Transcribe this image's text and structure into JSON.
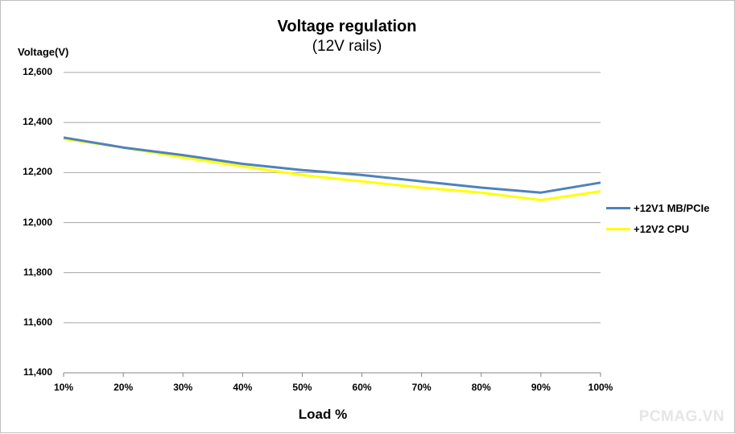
{
  "chart_data": {
    "type": "line",
    "title": "Voltage regulation",
    "subtitle": "(12V rails)",
    "ylabel": "Voltage(V)",
    "xlabel": "Load %",
    "categories": [
      "10%",
      "20%",
      "30%",
      "40%",
      "50%",
      "60%",
      "70%",
      "80%",
      "90%",
      "100%"
    ],
    "yticks": [
      "11,400",
      "11,600",
      "11,800",
      "12,000",
      "12,200",
      "12,400",
      "12,600"
    ],
    "ylim": [
      11.4,
      12.6
    ],
    "grid": true,
    "legend_position": "right",
    "series": [
      {
        "name": "+12V1 MB/PCIe",
        "color": "#4f81bd",
        "values": [
          12.34,
          12.3,
          12.27,
          12.235,
          12.21,
          12.19,
          12.165,
          12.14,
          12.12,
          12.16
        ]
      },
      {
        "name": "+12V2 CPU",
        "color": "#ffff00",
        "values": [
          12.335,
          12.3,
          12.26,
          12.225,
          12.19,
          12.165,
          12.14,
          12.12,
          12.09,
          12.125
        ]
      }
    ]
  },
  "watermark": "PCMAG.VN"
}
